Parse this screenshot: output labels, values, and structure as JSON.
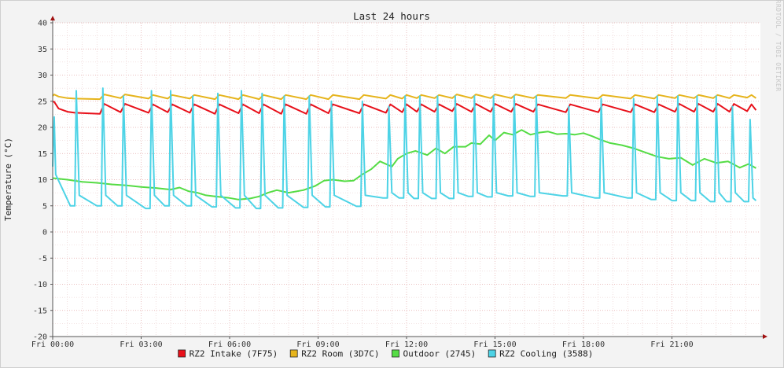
{
  "chart_data": {
    "type": "line",
    "title": "Last 24 hours",
    "ylabel": "Temperature (°C)",
    "xlabel": "",
    "watermark": "RRDTOOL / TOBI OETIKER",
    "ylim": [
      -20,
      40
    ],
    "xlim": [
      0,
      24
    ],
    "yticks": [
      "-20",
      "-15",
      "-10",
      "-5",
      "0",
      "5",
      "10",
      "15",
      "20",
      "25",
      "30",
      "35",
      "40"
    ],
    "xticks": [
      {
        "t": 0,
        "label": "Fri 00:00"
      },
      {
        "t": 3,
        "label": "Fri 03:00"
      },
      {
        "t": 6,
        "label": "Fri 06:00"
      },
      {
        "t": 9,
        "label": "Fri 09:00"
      },
      {
        "t": 12,
        "label": "Fri 12:00"
      },
      {
        "t": 15,
        "label": "Fri 15:00"
      },
      {
        "t": 18,
        "label": "Fri 18:00"
      },
      {
        "t": 21,
        "label": "Fri 21:00"
      }
    ],
    "grid": true,
    "legend_position": "bottom",
    "series": [
      {
        "name": "RZ2 Intake (7F75)",
        "color": "#e8101a",
        "x": [
          0,
          0.05,
          0.2,
          0.5,
          0.75,
          1.6,
          1.75,
          2.3,
          2.45,
          3.25,
          3.4,
          3.9,
          4.05,
          4.65,
          4.8,
          5.5,
          5.65,
          6.3,
          6.45,
          7.0,
          7.15,
          7.75,
          7.9,
          8.6,
          8.75,
          9.35,
          9.5,
          10.4,
          10.55,
          11.3,
          11.45,
          11.85,
          12.0,
          12.35,
          12.5,
          12.95,
          13.1,
          13.55,
          13.7,
          14.2,
          14.35,
          14.85,
          15.0,
          15.55,
          15.7,
          16.3,
          16.45,
          17.4,
          17.55,
          18.5,
          18.65,
          19.6,
          19.75,
          20.4,
          20.55,
          21.1,
          21.25,
          21.75,
          21.9,
          22.4,
          22.55,
          22.95,
          23.1,
          23.55,
          23.7,
          23.85
        ],
        "y": [
          24.9,
          24.9,
          23.6,
          23.0,
          22.8,
          22.6,
          24.5,
          22.9,
          24.5,
          22.8,
          24.4,
          22.9,
          24.4,
          22.8,
          24.4,
          22.6,
          24.4,
          22.7,
          24.4,
          22.7,
          24.4,
          22.6,
          24.4,
          22.6,
          24.4,
          22.7,
          24.4,
          22.7,
          24.4,
          22.8,
          24.4,
          22.9,
          24.4,
          23.0,
          24.4,
          23.0,
          24.4,
          23.1,
          24.5,
          23.0,
          24.5,
          23.0,
          24.5,
          23.0,
          24.5,
          23.0,
          24.4,
          22.9,
          24.4,
          22.9,
          24.4,
          22.9,
          24.4,
          22.9,
          24.4,
          23.0,
          24.5,
          23.0,
          24.5,
          23.0,
          24.5,
          23.0,
          24.5,
          23.1,
          24.4,
          23.3
        ]
      },
      {
        "name": "RZ2 Room (3D7C)",
        "color": "#e6b41c",
        "x": [
          0,
          0.05,
          0.2,
          0.5,
          0.75,
          1.6,
          1.75,
          2.3,
          2.45,
          3.25,
          3.4,
          3.9,
          4.05,
          4.65,
          4.8,
          5.5,
          5.65,
          6.3,
          6.45,
          7.0,
          7.15,
          7.75,
          7.9,
          8.6,
          8.75,
          9.35,
          9.5,
          10.4,
          10.55,
          11.3,
          11.45,
          11.85,
          12.0,
          12.35,
          12.5,
          12.95,
          13.1,
          13.55,
          13.7,
          14.2,
          14.35,
          14.85,
          15.0,
          15.55,
          15.7,
          16.3,
          16.45,
          17.4,
          17.55,
          18.5,
          18.65,
          19.6,
          19.75,
          20.4,
          20.55,
          21.1,
          21.25,
          21.75,
          21.9,
          22.4,
          22.55,
          22.95,
          23.1,
          23.55,
          23.7,
          23.85
        ],
        "y": [
          26.0,
          26.3,
          25.9,
          25.6,
          25.5,
          25.4,
          26.3,
          25.6,
          26.3,
          25.5,
          26.2,
          25.5,
          26.2,
          25.5,
          26.2,
          25.4,
          26.2,
          25.4,
          26.2,
          25.4,
          26.2,
          25.4,
          26.2,
          25.4,
          26.2,
          25.4,
          26.2,
          25.4,
          26.2,
          25.5,
          26.2,
          25.5,
          26.2,
          25.6,
          26.2,
          25.6,
          26.2,
          25.6,
          26.3,
          25.6,
          26.3,
          25.6,
          26.3,
          25.6,
          26.3,
          25.6,
          26.2,
          25.6,
          26.2,
          25.5,
          26.2,
          25.5,
          26.2,
          25.5,
          26.2,
          25.6,
          26.2,
          25.6,
          26.2,
          25.6,
          26.2,
          25.6,
          26.2,
          25.7,
          26.2,
          25.6
        ]
      },
      {
        "name": "Outdoor (2745)",
        "color": "#55dc45",
        "x": [
          0,
          0.5,
          1.0,
          1.5,
          2.0,
          2.5,
          3.0,
          3.5,
          4.0,
          4.3,
          4.6,
          4.9,
          5.2,
          5.5,
          6.0,
          6.3,
          6.7,
          7.0,
          7.3,
          7.6,
          8.0,
          8.5,
          8.9,
          9.2,
          9.5,
          9.9,
          10.2,
          10.5,
          10.8,
          11.1,
          11.5,
          11.7,
          12.0,
          12.3,
          12.7,
          13.0,
          13.3,
          13.6,
          14.0,
          14.2,
          14.5,
          14.8,
          15.0,
          15.3,
          15.6,
          15.9,
          16.2,
          16.5,
          16.8,
          17.1,
          17.4,
          17.7,
          18.0,
          18.3,
          18.6,
          18.9,
          19.3,
          19.7,
          20.1,
          20.5,
          20.9,
          21.3,
          21.7,
          22.1,
          22.5,
          22.9,
          23.3,
          23.6,
          23.85
        ],
        "y": [
          10.3,
          10.0,
          9.6,
          9.4,
          9.1,
          8.9,
          8.6,
          8.4,
          8.1,
          8.5,
          7.8,
          7.5,
          7.0,
          6.8,
          6.5,
          6.2,
          6.4,
          6.8,
          7.5,
          8.0,
          7.5,
          8.0,
          8.8,
          9.8,
          10.0,
          9.7,
          9.8,
          11.0,
          12.0,
          13.5,
          12.5,
          14.0,
          15.0,
          15.5,
          14.7,
          16.0,
          15.0,
          16.3,
          16.3,
          17.0,
          16.8,
          18.5,
          17.5,
          19.0,
          18.6,
          19.5,
          18.6,
          19.0,
          19.2,
          18.7,
          18.8,
          18.6,
          18.9,
          18.3,
          17.6,
          17.0,
          16.6,
          16.0,
          15.2,
          14.4,
          14.0,
          14.2,
          12.8,
          14.0,
          13.2,
          13.5,
          12.3,
          13.0,
          12.2
        ]
      },
      {
        "name": "RZ2 Cooling (3588)",
        "color": "#4dd3e6",
        "x": [
          0,
          0.05,
          0.1,
          0.6,
          0.75,
          0.8,
          0.9,
          1.5,
          1.65,
          1.7,
          1.8,
          2.2,
          2.35,
          2.4,
          2.5,
          3.15,
          3.3,
          3.35,
          3.45,
          3.8,
          3.95,
          4.0,
          4.1,
          4.55,
          4.7,
          4.75,
          4.85,
          5.4,
          5.55,
          5.6,
          5.7,
          6.2,
          6.35,
          6.4,
          6.5,
          6.9,
          7.05,
          7.1,
          7.2,
          7.65,
          7.8,
          7.85,
          7.95,
          8.5,
          8.65,
          8.7,
          8.8,
          9.25,
          9.4,
          9.45,
          9.55,
          10.3,
          10.45,
          10.5,
          10.6,
          11.2,
          11.35,
          11.4,
          11.5,
          11.75,
          11.9,
          11.95,
          12.05,
          12.25,
          12.4,
          12.45,
          12.55,
          12.85,
          13.0,
          13.05,
          13.15,
          13.45,
          13.6,
          13.65,
          13.75,
          14.1,
          14.25,
          14.3,
          14.4,
          14.75,
          14.9,
          14.95,
          15.05,
          15.45,
          15.6,
          15.65,
          15.75,
          16.2,
          16.35,
          16.4,
          16.5,
          17.3,
          17.45,
          17.5,
          17.6,
          18.4,
          18.55,
          18.6,
          18.7,
          19.5,
          19.65,
          19.7,
          19.8,
          20.3,
          20.45,
          20.5,
          20.6,
          21.0,
          21.15,
          21.2,
          21.3,
          21.65,
          21.8,
          21.85,
          21.95,
          22.3,
          22.45,
          22.5,
          22.6,
          22.85,
          23.0,
          23.05,
          23.15,
          23.45,
          23.6,
          23.65,
          23.75,
          23.85
        ],
        "y": [
          12.5,
          22.0,
          11.0,
          5.0,
          5.0,
          27.0,
          7.0,
          5.0,
          5.0,
          27.5,
          7.0,
          5.0,
          5.0,
          26.0,
          7.0,
          4.5,
          4.5,
          27.0,
          7.0,
          5.0,
          5.0,
          27.0,
          7.0,
          5.0,
          5.0,
          26.0,
          7.0,
          4.8,
          4.8,
          26.5,
          7.0,
          4.6,
          4.6,
          27.0,
          7.0,
          4.5,
          4.5,
          26.5,
          7.0,
          4.6,
          4.6,
          26.0,
          7.0,
          4.7,
          4.7,
          26.0,
          7.0,
          4.8,
          4.8,
          25.0,
          7.0,
          4.9,
          4.9,
          25.0,
          7.0,
          6.5,
          6.5,
          24.0,
          7.5,
          6.5,
          6.5,
          26.0,
          7.5,
          6.4,
          6.4,
          26.0,
          7.5,
          6.4,
          6.4,
          26.0,
          7.5,
          6.4,
          6.4,
          26.0,
          7.5,
          6.8,
          6.8,
          26.0,
          7.5,
          6.7,
          6.7,
          26.0,
          7.5,
          6.9,
          6.9,
          26.0,
          7.5,
          6.8,
          6.8,
          26.0,
          7.5,
          6.9,
          6.9,
          24.0,
          7.5,
          6.5,
          6.5,
          25.5,
          7.5,
          6.5,
          6.5,
          25.5,
          7.5,
          6.2,
          6.2,
          26.0,
          7.5,
          6.0,
          6.0,
          26.0,
          7.5,
          6.0,
          6.0,
          26.0,
          7.5,
          5.8,
          5.8,
          26.0,
          7.5,
          5.8,
          5.8,
          24.0,
          7.5,
          5.8,
          5.8,
          21.5,
          6.5,
          6.0
        ]
      }
    ]
  }
}
